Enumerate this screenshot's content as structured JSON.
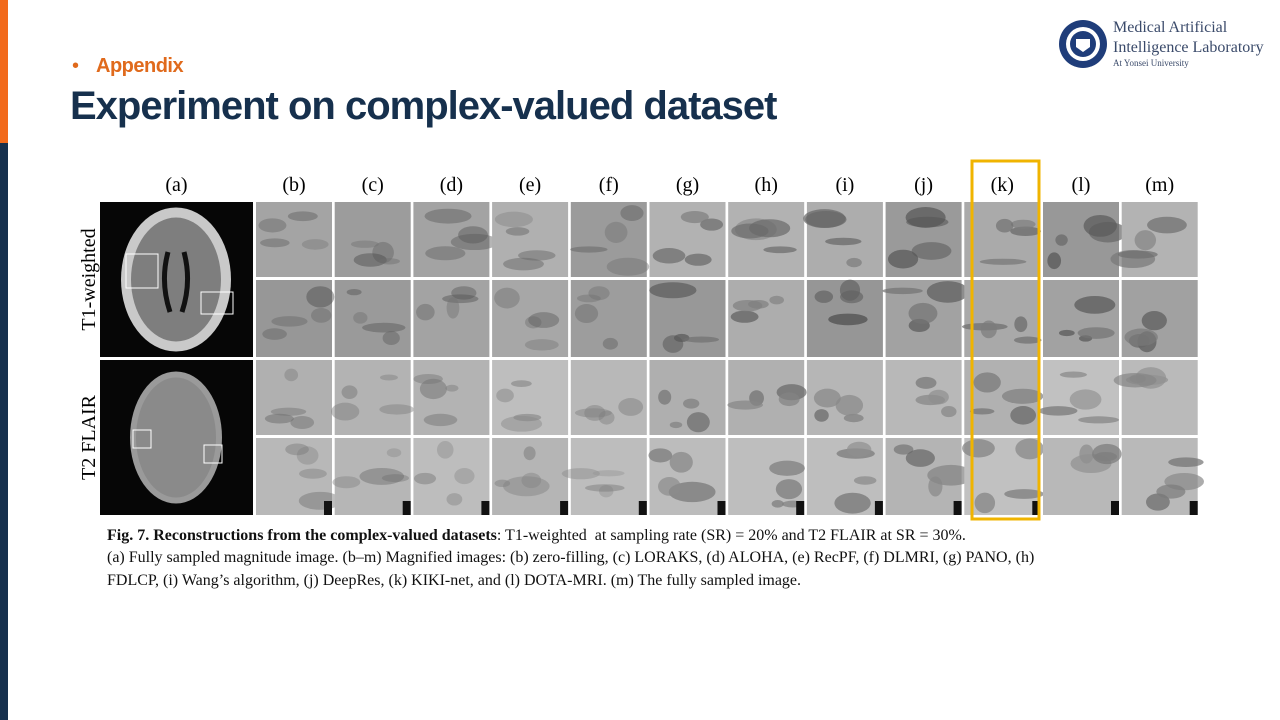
{
  "header": {
    "section": "Appendix",
    "title": "Experiment on complex-valued dataset"
  },
  "logo": {
    "line1": "Medical Artificial",
    "line2": "Intelligence Laboratory",
    "line3": "At Yonsei University"
  },
  "figure": {
    "columns": [
      "(a)",
      "(b)",
      "(c)",
      "(d)",
      "(e)",
      "(f)",
      "(g)",
      "(h)",
      "(i)",
      "(j)",
      "(k)",
      "(l)",
      "(m)"
    ],
    "rows": [
      "T1-weighted",
      "T2 FLAIR"
    ],
    "caption": {
      "label": "Fig. 7. Reconstructions from the complex-valued datasets",
      "line1": ": T1-weighted  at sampling rate (SR) = 20% and T2 FLAIR at SR = 30%.",
      "line2": "(a) Fully sampled magnitude image. (b–m) Magnified images: (b) zero-filling, (c) LORAKS, (d) ALOHA, (e) RecPF, (f) DLMRI, (g) PANO, (h)",
      "line3": "FDLCP, (i) Wang’s algorithm, (j) DeepRes, (k) KIKI-net, and (l) DOTA-MRI. (m) The fully sampled image."
    }
  }
}
